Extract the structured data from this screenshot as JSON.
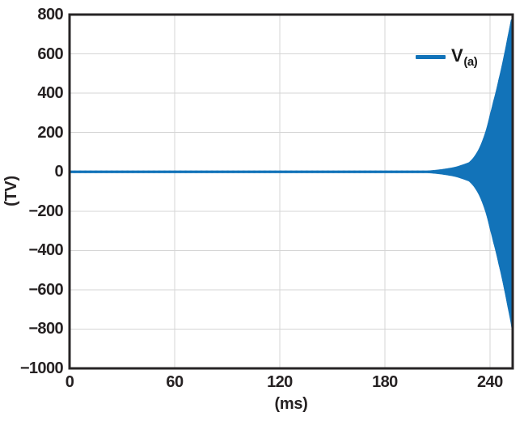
{
  "colors": {
    "series": "#1273b9",
    "grid": "#d5d5d5",
    "frame": "#272425",
    "text": "#262223",
    "background": "#ffffff"
  },
  "chart_data": {
    "type": "line",
    "title": "",
    "xlabel": "(ms)",
    "ylabel": "(TV)",
    "xlim": [
      0,
      253
    ],
    "ylim": [
      -1000,
      800
    ],
    "x_ticks": [
      0,
      60,
      120,
      180,
      240
    ],
    "x_tick_labels": [
      "0",
      "60",
      "120",
      "180",
      "240"
    ],
    "y_ticks": [
      800,
      600,
      400,
      200,
      0,
      -200,
      -400,
      -600,
      -800,
      -1000
    ],
    "y_tick_labels": [
      "800",
      "600",
      "400",
      "200",
      "0",
      "−200",
      "−400",
      "−600",
      "−800",
      "−1000"
    ],
    "grid": true,
    "legend": {
      "position": "top-right",
      "entries": [
        {
          "label": "V",
          "sub": "(a)",
          "color": "#1273b9"
        }
      ]
    },
    "series": [
      {
        "name": "V(a)",
        "waveform": "sinusoid with exponentially growing amplitude (unstable oscillator start-up): output stays at ~0 TV from 0 ms to ~200 ms, then the oscillation envelope grows rapidly, reaching about ±800 TV at ~253 ms where the trace meets the right edge of the plot",
        "envelope_points_ms_amplitude": [
          [
            0,
            0.4
          ],
          [
            150,
            0.4
          ],
          [
            180,
            1.2
          ],
          [
            195,
            3
          ],
          [
            205,
            6
          ],
          [
            210,
            10
          ],
          [
            215,
            16
          ],
          [
            220,
            24
          ],
          [
            224,
            35
          ],
          [
            228,
            48
          ],
          [
            232,
            90
          ],
          [
            236,
            165
          ],
          [
            240,
            290
          ],
          [
            242,
            360
          ],
          [
            245,
            470
          ],
          [
            248,
            590
          ],
          [
            250,
            680
          ],
          [
            252,
            770
          ],
          [
            253,
            830
          ]
        ],
        "envelope_clip": [
          -830,
          775
        ]
      }
    ]
  }
}
